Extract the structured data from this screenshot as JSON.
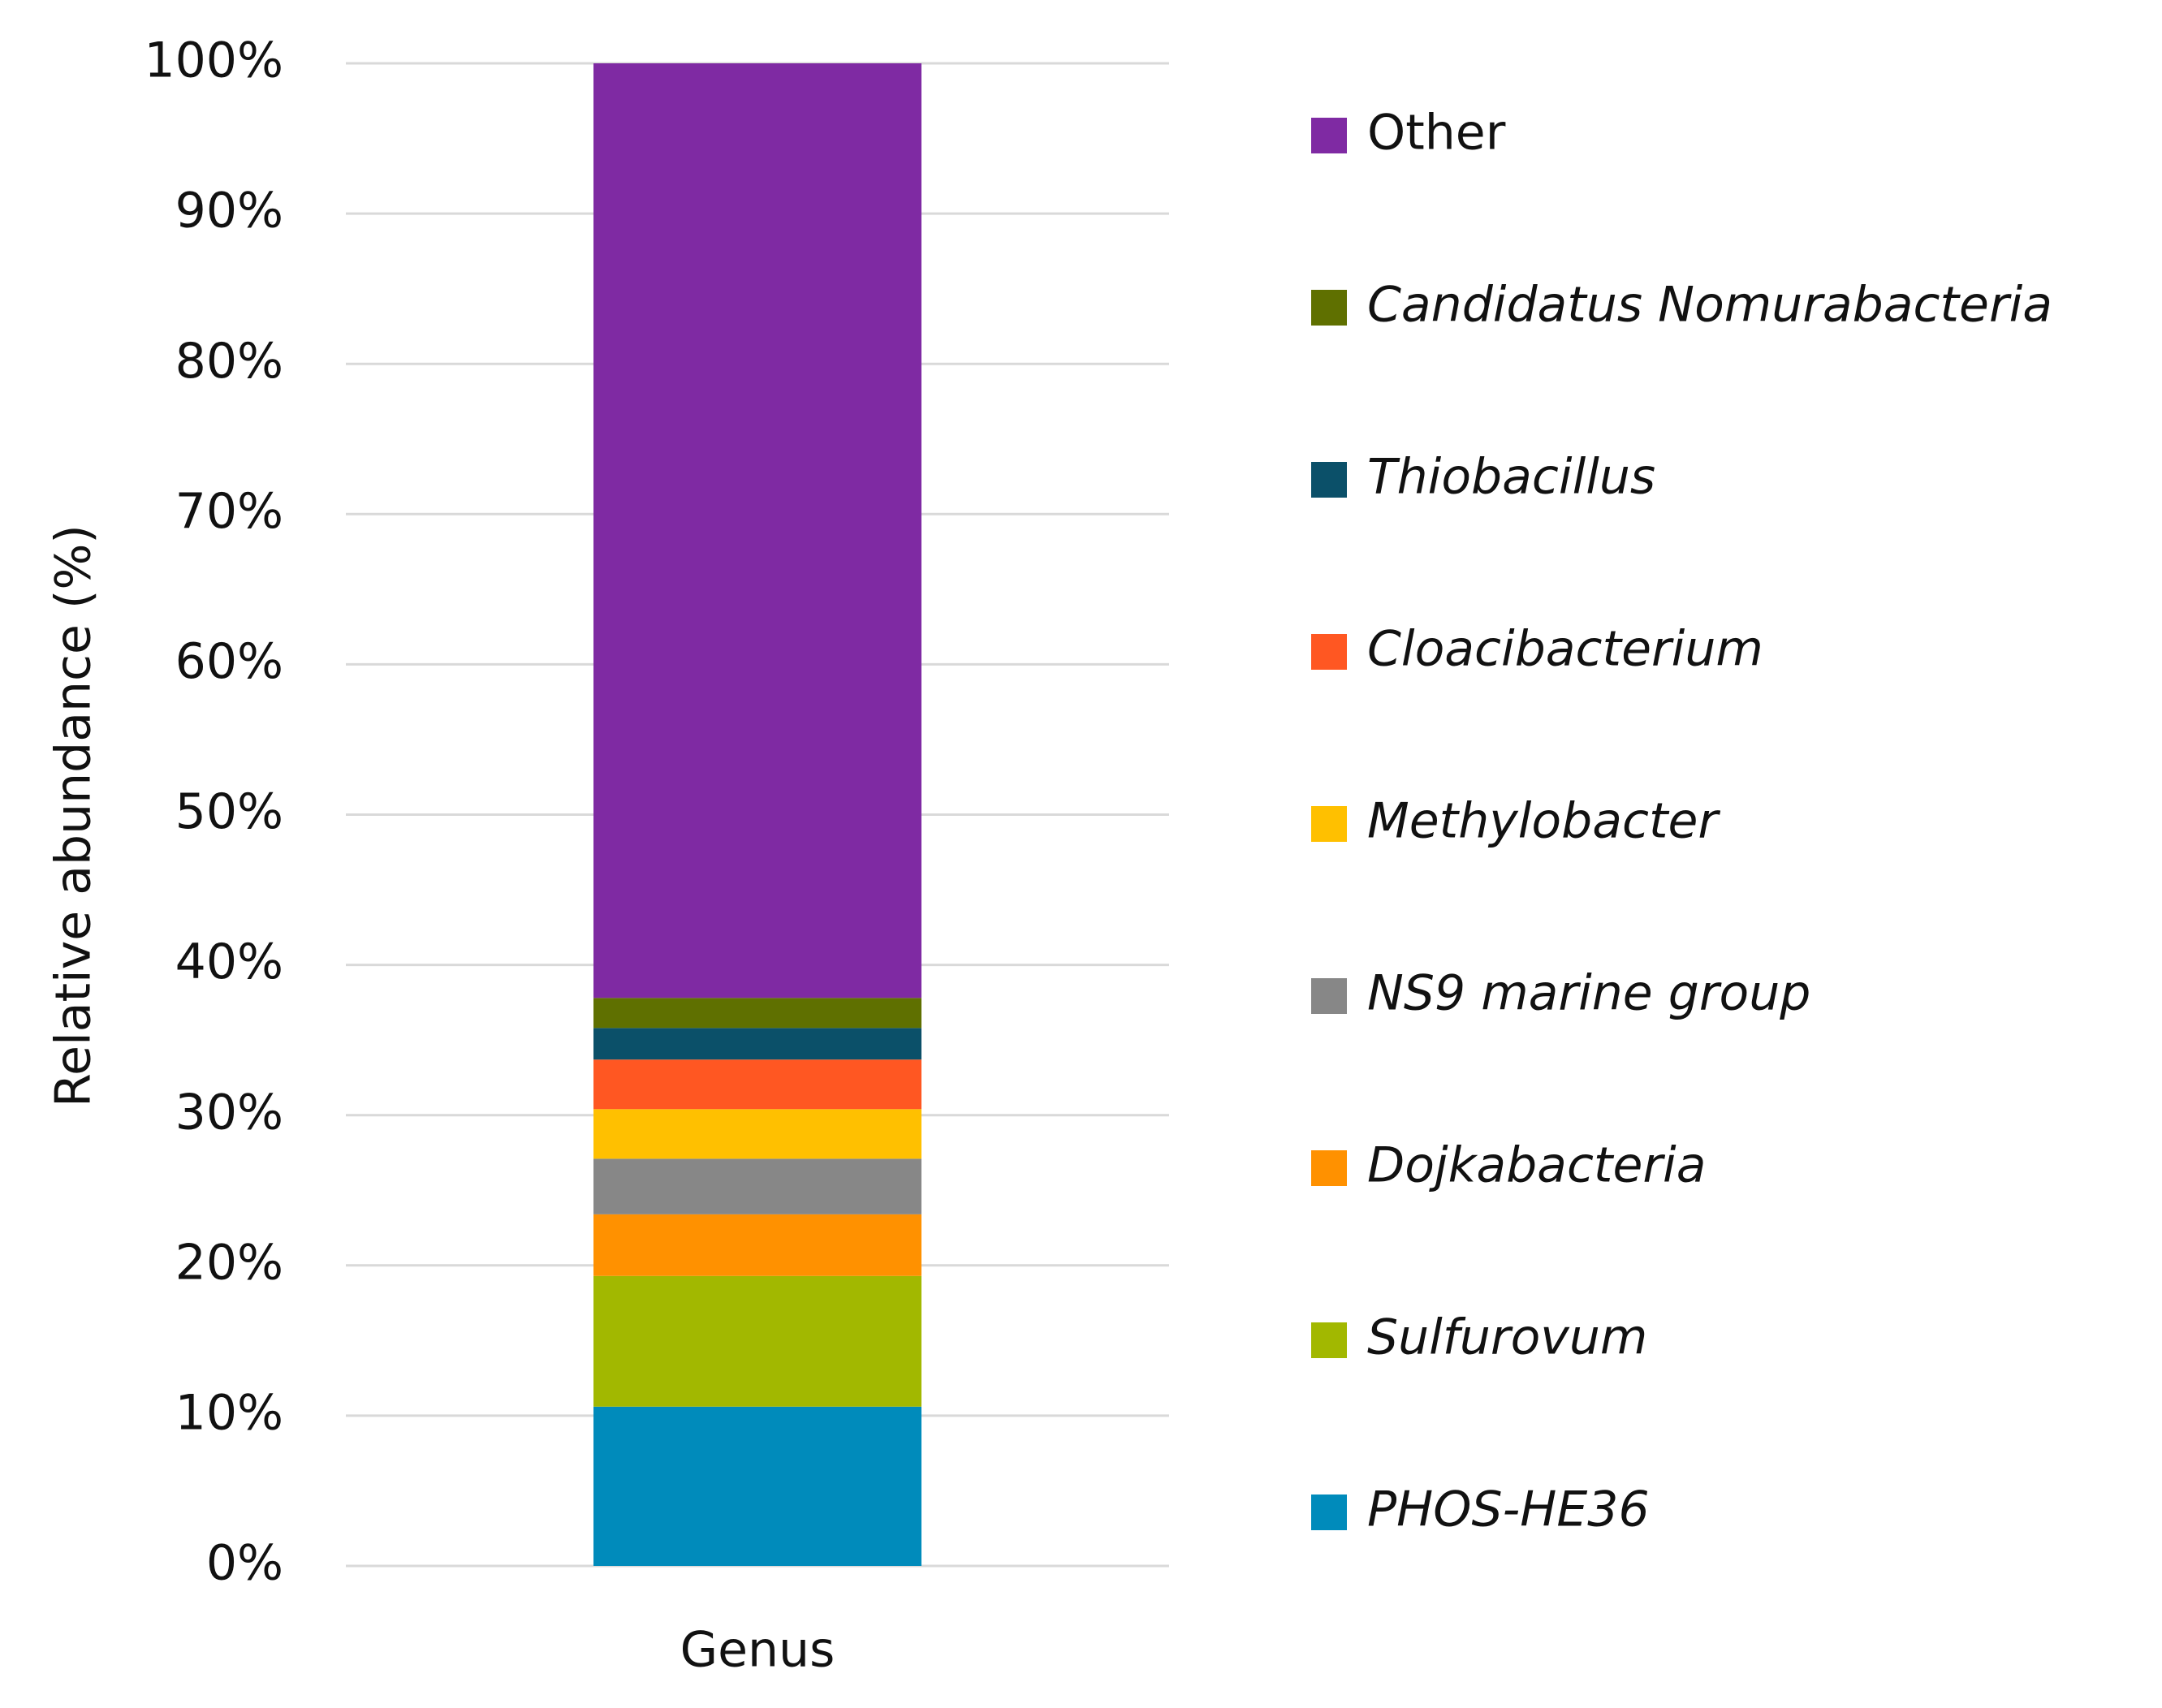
{
  "chart_data": {
    "type": "stacked-bar",
    "y_label": "Relative abundance (%)",
    "categories": [
      "Genus"
    ],
    "ylim": [
      0,
      100
    ],
    "yticks": [
      {
        "value": 0,
        "label": "0%"
      },
      {
        "value": 10,
        "label": "10%"
      },
      {
        "value": 20,
        "label": "20%"
      },
      {
        "value": 30,
        "label": "30%"
      },
      {
        "value": 40,
        "label": "40%"
      },
      {
        "value": 50,
        "label": "50%"
      },
      {
        "value": 60,
        "label": "60%"
      },
      {
        "value": 70,
        "label": "70%"
      },
      {
        "value": 80,
        "label": "80%"
      },
      {
        "value": 90,
        "label": "90%"
      },
      {
        "value": 100,
        "label": "100%"
      }
    ],
    "grid": true,
    "legend": "right",
    "series": [
      {
        "name": "PHOS-HE36",
        "color": "#008bbb",
        "values": [
          10.6
        ]
      },
      {
        "name": "Sulfurovum",
        "color": "#a2b800",
        "values": [
          8.7
        ]
      },
      {
        "name": "Dojkabacteria",
        "color": "#ff9100",
        "values": [
          4.1
        ]
      },
      {
        "name": "NS9 marine group",
        "color": "#878787",
        "values": [
          3.7
        ]
      },
      {
        "name": "Methylobacter",
        "color": "#ffc000",
        "values": [
          3.3
        ]
      },
      {
        "name": "Cloacibacterium",
        "color": "#ff5722",
        "values": [
          3.3
        ]
      },
      {
        "name": "Thiobacillus",
        "color": "#0b5069",
        "values": [
          2.1
        ]
      },
      {
        "name": "Candidatus Nomurabacteria",
        "color": "#5f7000",
        "values": [
          2.0
        ]
      },
      {
        "name": "Other",
        "color": "#7f2aa3",
        "values": [
          62.2
        ]
      }
    ]
  }
}
